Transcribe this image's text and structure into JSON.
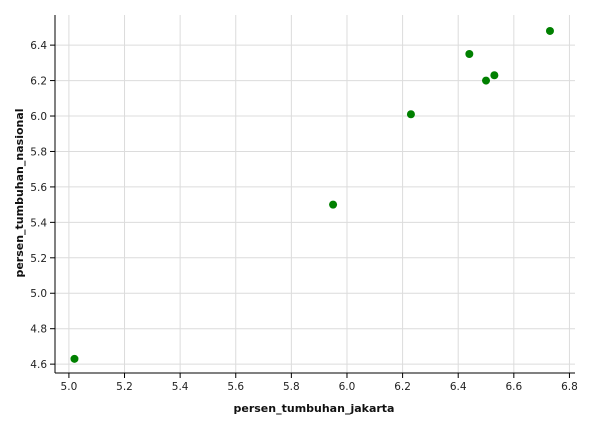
{
  "chart_data": {
    "type": "scatter",
    "xlabel": "persen_tumbuhan_jakarta",
    "ylabel": "persen_tumbuhan_nasional",
    "xlim": [
      4.95,
      6.82
    ],
    "ylim": [
      4.55,
      6.57
    ],
    "xticks": [
      5.0,
      5.2,
      5.4,
      5.6,
      5.8,
      6.0,
      6.2,
      6.4,
      6.6,
      6.8
    ],
    "yticks": [
      4.6,
      4.8,
      5.0,
      5.2,
      5.4,
      5.6,
      5.8,
      6.0,
      6.2,
      6.4
    ],
    "xtick_labels": [
      "5.0",
      "5.2",
      "5.4",
      "5.6",
      "5.8",
      "6.0",
      "6.2",
      "6.4",
      "6.6",
      "6.8"
    ],
    "ytick_labels": [
      "4.6",
      "4.8",
      "5.0",
      "5.2",
      "5.4",
      "5.6",
      "5.8",
      "6.0",
      "6.2",
      "6.4"
    ],
    "grid": true,
    "point_color": "#008000",
    "points": [
      {
        "x": 5.02,
        "y": 4.63
      },
      {
        "x": 5.95,
        "y": 5.5
      },
      {
        "x": 6.23,
        "y": 6.01
      },
      {
        "x": 6.44,
        "y": 6.35
      },
      {
        "x": 6.5,
        "y": 6.2
      },
      {
        "x": 6.53,
        "y": 6.23
      },
      {
        "x": 6.73,
        "y": 6.48
      }
    ]
  }
}
